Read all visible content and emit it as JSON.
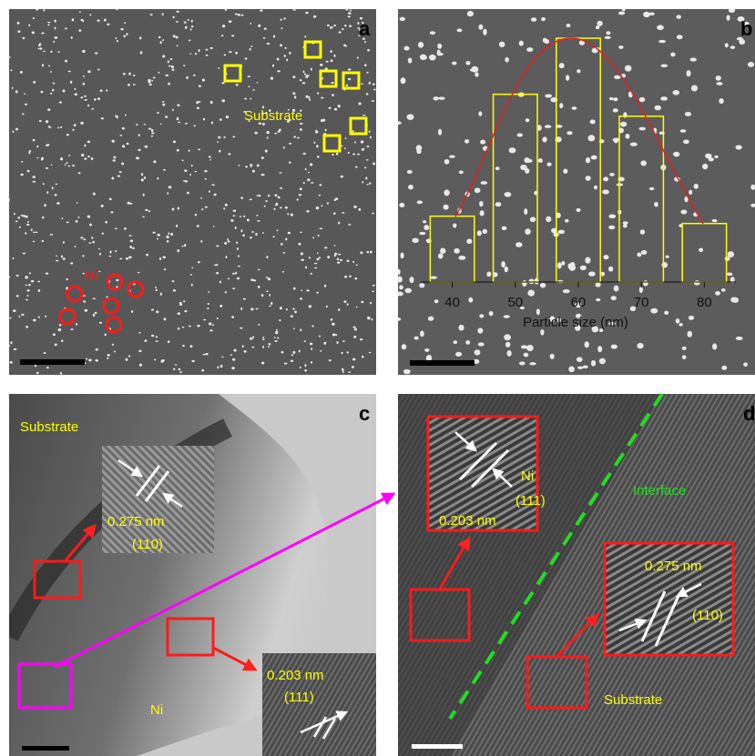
{
  "panel_a": {
    "label": "a",
    "substrate": "Substrate",
    "ni": "Ni"
  },
  "chart_data": {
    "type": "bar",
    "label": "b",
    "x_label": "Particle size (nm)",
    "x": [
      40,
      50,
      60,
      70,
      80
    ],
    "values": [
      27,
      77,
      100,
      68,
      24
    ],
    "color": "#ffff00",
    "xlim": [
      35,
      85
    ],
    "xticks": [
      40,
      50,
      60,
      70,
      80
    ],
    "ylim": [
      0,
      100
    ]
  },
  "panel_c": {
    "label": "c",
    "substrate": "Substrate",
    "d_spacing_1": "0.275 nm",
    "plane_1": "(110)",
    "d_spacing_2": "0.203 nm",
    "plane_2": "(111)",
    "ni": "Ni"
  },
  "panel_d": {
    "label": "d",
    "ni": "Ni",
    "plane_1": "(111)",
    "d_spacing_1": "0.203 nm",
    "interface": "Interface",
    "d_spacing_2": "0.275 nm",
    "plane_2": "(110)",
    "substrate": "Substrate"
  }
}
